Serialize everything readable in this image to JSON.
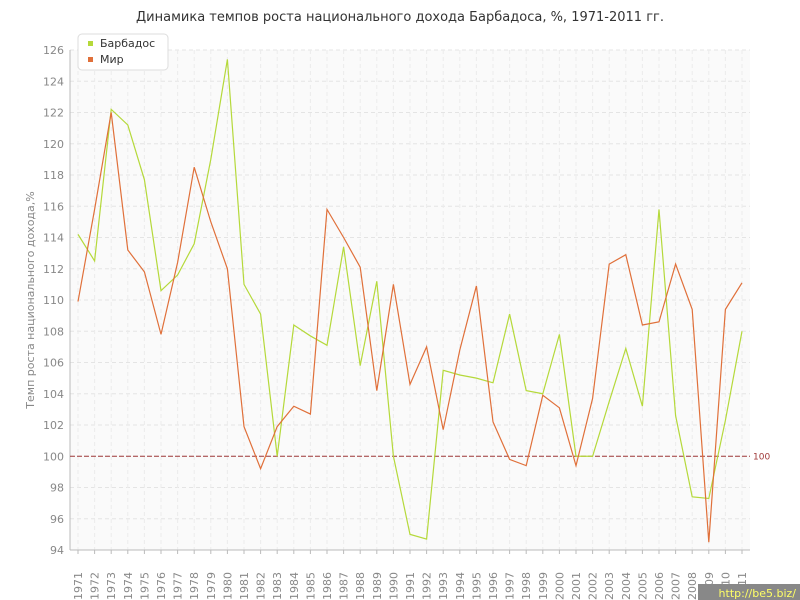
{
  "chart_data": {
    "type": "line",
    "title": "Динамика темпов роста национального дохода Барбадоса, %, 1971-2011 гг.",
    "y_label": "Темп роста национального дохода,%",
    "categories": [
      "1971",
      "1972",
      "1973",
      "1974",
      "1975",
      "1976",
      "1977",
      "1978",
      "1979",
      "1980",
      "1981",
      "1982",
      "1983",
      "1984",
      "1985",
      "1986",
      "1987",
      "1988",
      "1989",
      "1990",
      "1991",
      "1992",
      "1993",
      "1994",
      "1995",
      "1996",
      "1997",
      "1998",
      "1999",
      "2000",
      "2001",
      "2002",
      "2003",
      "2004",
      "2005",
      "2006",
      "2007",
      "2008",
      "2009",
      "2010",
      "2011"
    ],
    "series": [
      {
        "name": "Барбадос",
        "color": "#b5d93a",
        "values": [
          114.2,
          112.5,
          122.2,
          121.2,
          117.7,
          110.6,
          111.6,
          113.6,
          119,
          125.4,
          111,
          109.1,
          100,
          108.4,
          107.7,
          107.1,
          113.4,
          105.8,
          111.2,
          100,
          95,
          94.7,
          105.5,
          105.2,
          105,
          104.7,
          109.1,
          104.2,
          104,
          107.8,
          100,
          100,
          103.5,
          106.9,
          103.2,
          115.8,
          102.6,
          97.4,
          97.3,
          102.3,
          108
        ]
      },
      {
        "name": "Мир",
        "color": "#e0703a",
        "values": [
          109.9,
          115.8,
          122,
          113.2,
          111.8,
          107.8,
          112.4,
          118.5,
          115,
          112,
          101.9,
          99.2,
          101.9,
          103.2,
          102.7,
          115.8,
          114,
          112.1,
          104.2,
          111,
          104.6,
          107,
          101.7,
          106.8,
          110.9,
          102.2,
          99.8,
          99.4,
          103.9,
          103.1,
          99.4,
          103.7,
          112.3,
          112.9,
          108.4,
          108.6,
          112.3,
          109.4,
          94.5,
          109.4,
          111.1
        ]
      }
    ],
    "ylim": [
      94,
      126
    ],
    "yticks": [
      94,
      96,
      98,
      100,
      102,
      104,
      106,
      108,
      110,
      112,
      114,
      116,
      118,
      120,
      122,
      124,
      126
    ],
    "reference_line": 100,
    "reference_color": "#a03a3a",
    "grid": true,
    "legend": "top-left",
    "watermark": "http://be5.biz/"
  }
}
